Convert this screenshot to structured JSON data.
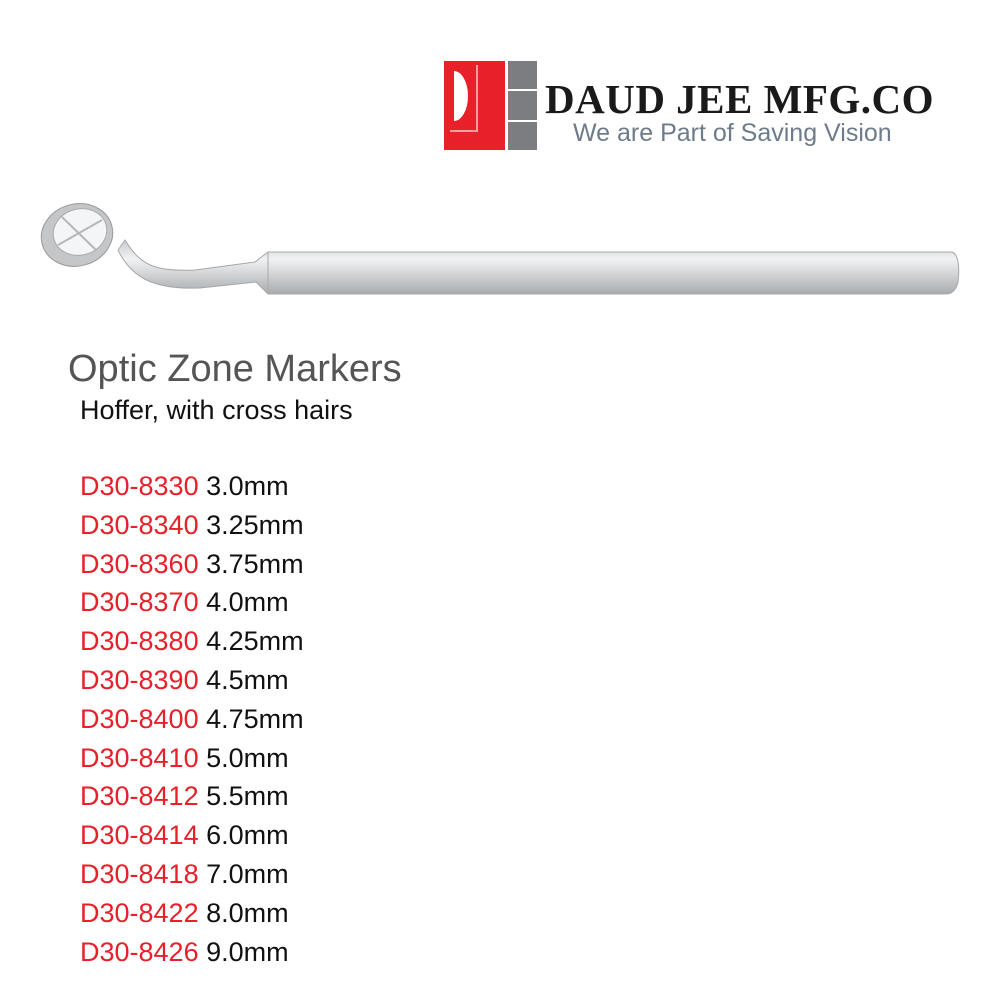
{
  "logo": {
    "brand": "DAUD JEE MFG.CO",
    "tagline": "We are Part of Saving Vision",
    "colors": {
      "red": "#e8202a",
      "gray": "#7b7d80"
    }
  },
  "product": {
    "title": "Optic Zone Markers",
    "description": "Hoffer, with cross hairs",
    "image": "optic-zone-marker-instrument",
    "code_color": "#e8202a",
    "items": [
      {
        "code": "D30-8330",
        "size": "3.0mm"
      },
      {
        "code": "D30-8340",
        "size": "3.25mm"
      },
      {
        "code": "D30-8360",
        "size": "3.75mm"
      },
      {
        "code": "D30-8370",
        "size": "4.0mm"
      },
      {
        "code": "D30-8380",
        "size": "4.25mm"
      },
      {
        "code": "D30-8390",
        "size": "4.5mm"
      },
      {
        "code": "D30-8400",
        "size": "4.75mm"
      },
      {
        "code": "D30-8410",
        "size": "5.0mm"
      },
      {
        "code": "D30-8412",
        "size": "5.5mm"
      },
      {
        "code": "D30-8414",
        "size": "6.0mm"
      },
      {
        "code": "D30-8418",
        "size": "7.0mm"
      },
      {
        "code": "D30-8422",
        "size": "8.0mm"
      },
      {
        "code": "D30-8426",
        "size": "9.0mm"
      }
    ]
  }
}
